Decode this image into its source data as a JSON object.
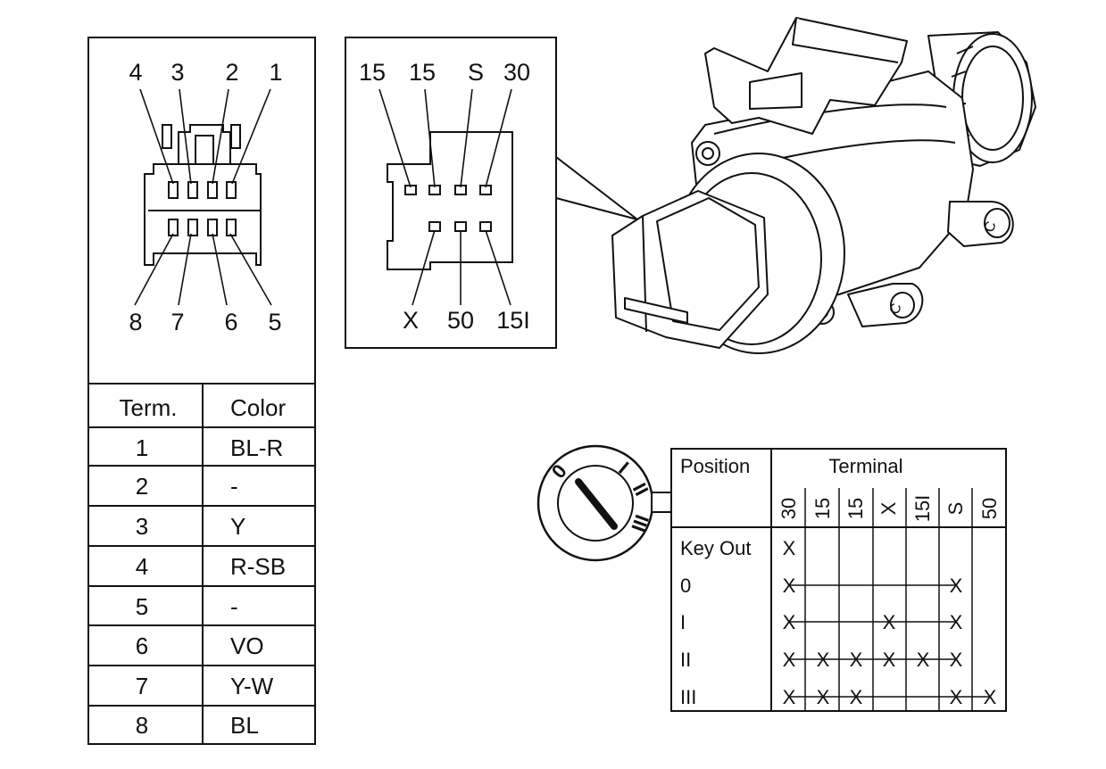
{
  "connector_pins": {
    "top": [
      "4",
      "3",
      "2",
      "1"
    ],
    "bottom": [
      "8",
      "7",
      "6",
      "5"
    ]
  },
  "detail_terminals": {
    "top": [
      "15",
      "15",
      "S",
      "30"
    ],
    "bottom": [
      "X",
      "50",
      "15I"
    ]
  },
  "wire_table": {
    "headers": [
      "Term.",
      "Color"
    ],
    "rows": [
      [
        "1",
        "BL-R"
      ],
      [
        "2",
        "-"
      ],
      [
        "3",
        "Y"
      ],
      [
        "4",
        "R-SB"
      ],
      [
        "5",
        "-"
      ],
      [
        "6",
        "VO"
      ],
      [
        "7",
        "Y-W"
      ],
      [
        "8",
        "BL"
      ]
    ]
  },
  "switch_positions": [
    "0",
    "I",
    "II",
    "III"
  ],
  "mount_mark": "C",
  "position_table": {
    "position_header": "Position",
    "terminal_header": "Terminal",
    "terminals": [
      "30",
      "15",
      "15",
      "X",
      "15I",
      "S",
      "50"
    ],
    "mark": "X",
    "rows": [
      {
        "position": "Key Out",
        "connected": [
          0
        ]
      },
      {
        "position": "0",
        "connected": [
          0,
          5
        ]
      },
      {
        "position": "I",
        "connected": [
          0,
          3,
          5
        ]
      },
      {
        "position": "II",
        "connected": [
          0,
          1,
          2,
          3,
          4,
          5
        ]
      },
      {
        "position": "III",
        "connected": [
          0,
          1,
          2,
          5,
          6
        ]
      }
    ]
  }
}
